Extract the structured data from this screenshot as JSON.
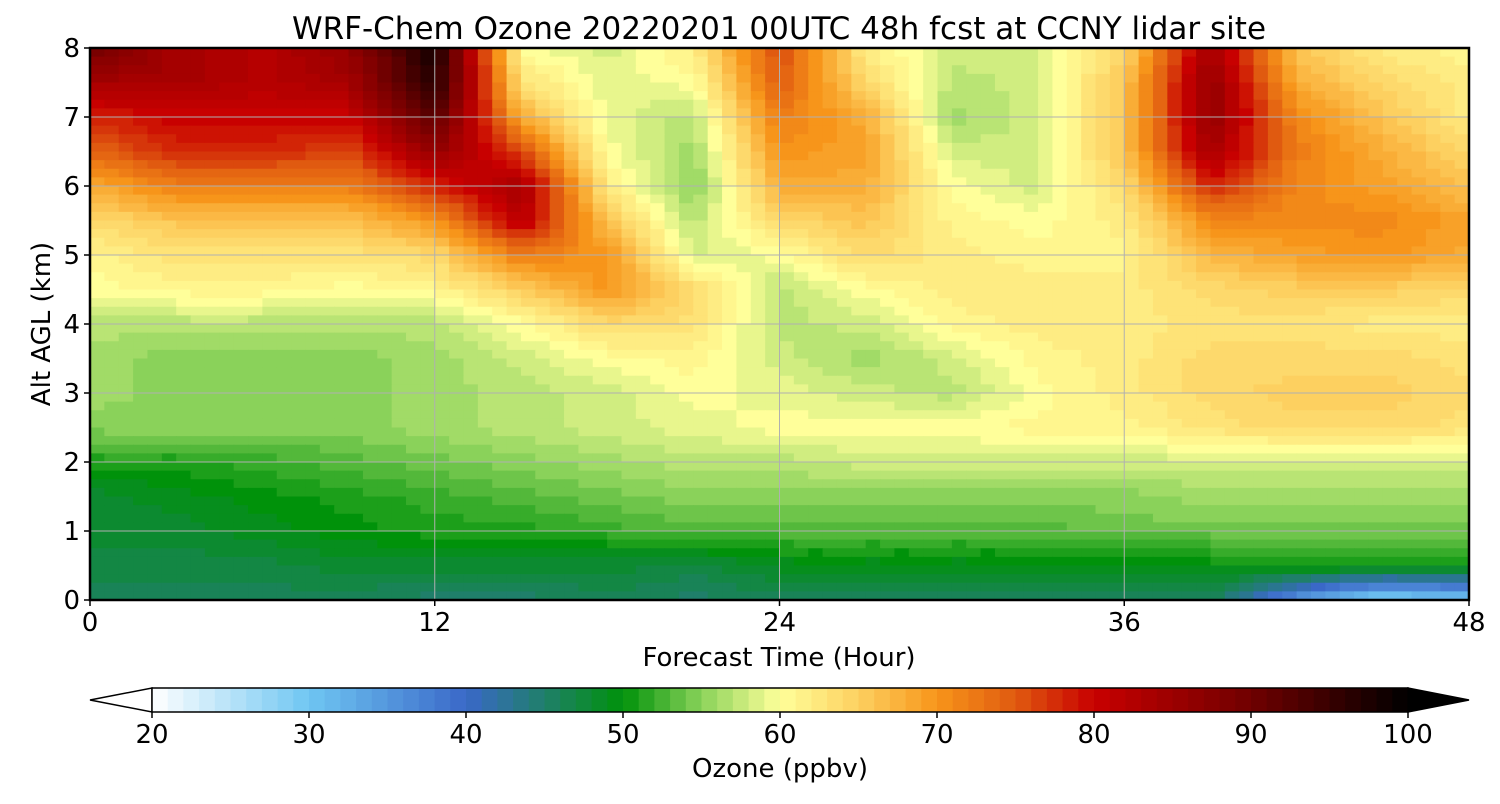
{
  "chart_data": {
    "type": "heatmap",
    "title": "WRF-Chem Ozone  20220201 00UTC 48h fcst at CCNY lidar site",
    "xlabel": "Forecast Time (Hour)",
    "ylabel": "Alt AGL (km)",
    "xlim": [
      0,
      48
    ],
    "ylim": [
      0,
      8
    ],
    "x_ticks": [
      0,
      12,
      24,
      36,
      48
    ],
    "y_ticks": [
      0,
      1,
      2,
      3,
      4,
      5,
      6,
      7,
      8
    ],
    "grid": true,
    "x": [
      0,
      3,
      6,
      9,
      12,
      15,
      18,
      21,
      24,
      27,
      30,
      33,
      36,
      39,
      42,
      45,
      48
    ],
    "y": [
      0,
      0.5,
      1,
      1.5,
      2,
      2.5,
      3,
      3.5,
      4,
      4.5,
      5,
      5.5,
      6,
      6.5,
      7,
      7.5,
      8
    ],
    "z": [
      [
        46,
        46,
        46,
        46,
        45,
        45,
        46,
        45,
        46,
        46,
        46,
        46,
        46,
        46,
        35,
        28,
        30
      ],
      [
        47,
        47,
        47,
        48,
        48,
        48,
        48,
        47,
        49,
        49,
        49,
        49,
        49,
        50,
        51,
        51,
        51
      ],
      [
        48,
        48,
        49,
        50,
        51,
        51,
        52,
        53,
        53,
        53,
        53,
        53,
        54,
        54,
        54,
        54,
        54
      ],
      [
        48,
        49,
        50,
        51,
        52,
        53,
        54,
        55,
        55,
        55,
        55,
        55,
        55,
        56,
        56,
        56,
        56
      ],
      [
        51,
        51,
        52,
        53,
        54,
        55,
        56,
        57,
        57,
        58,
        58,
        58,
        58,
        58,
        58,
        58,
        58
      ],
      [
        55,
        55,
        55,
        55,
        56,
        57,
        58,
        59,
        60,
        60,
        60,
        61,
        61,
        63,
        64,
        64,
        63
      ],
      [
        56,
        55,
        55,
        55,
        56,
        57,
        58,
        60,
        59,
        58,
        57,
        60,
        62,
        64,
        65,
        65,
        64
      ],
      [
        56,
        55,
        55,
        55,
        56,
        58,
        60,
        61,
        58,
        56,
        58,
        61,
        62,
        64,
        64,
        64,
        63
      ],
      [
        57,
        57,
        57,
        57,
        57,
        60,
        64,
        63,
        57,
        58,
        61,
        62,
        62,
        63,
        63,
        62,
        62
      ],
      [
        60,
        61,
        61,
        60,
        61,
        65,
        70,
        64,
        57,
        60,
        62,
        62,
        62,
        64,
        65,
        65,
        64
      ],
      [
        61,
        63,
        63,
        63,
        64,
        72,
        70,
        58,
        60,
        64,
        62,
        61,
        61,
        67,
        69,
        70,
        68
      ],
      [
        64,
        66,
        66,
        66,
        70,
        82,
        66,
        57,
        64,
        66,
        61,
        60,
        62,
        71,
        71,
        71,
        69
      ],
      [
        68,
        72,
        72,
        72,
        78,
        84,
        62,
        55,
        68,
        68,
        60,
        58,
        64,
        78,
        71,
        69,
        66
      ],
      [
        74,
        78,
        78,
        76,
        86,
        76,
        60,
        56,
        70,
        69,
        58,
        58,
        66,
        84,
        72,
        68,
        64
      ],
      [
        78,
        80,
        80,
        80,
        92,
        68,
        59,
        57,
        72,
        68,
        56,
        58,
        66,
        86,
        71,
        66,
        62
      ],
      [
        84,
        84,
        82,
        84,
        97,
        63,
        59,
        60,
        75,
        64,
        57,
        58,
        66,
        86,
        68,
        64,
        62
      ],
      [
        90,
        84,
        82,
        86,
        98,
        60,
        58,
        62,
        76,
        62,
        58,
        58,
        64,
        84,
        66,
        62,
        61
      ]
    ],
    "colorbar": {
      "label": "Ozone  (ppbv)",
      "min": 20,
      "max": 100,
      "ticks": [
        20,
        30,
        40,
        50,
        60,
        70,
        80,
        90,
        100
      ],
      "extend": "both",
      "orientation": "horizontal",
      "colors": [
        {
          "v": 20,
          "c": "#ffffff"
        },
        {
          "v": 30,
          "c": "#6fc6f2"
        },
        {
          "v": 40,
          "c": "#3a68c8"
        },
        {
          "v": 45,
          "c": "#1f7f6a"
        },
        {
          "v": 50,
          "c": "#00920a"
        },
        {
          "v": 55,
          "c": "#8ad25a"
        },
        {
          "v": 60,
          "c": "#ffff9a"
        },
        {
          "v": 65,
          "c": "#fdd060"
        },
        {
          "v": 70,
          "c": "#f7951a"
        },
        {
          "v": 75,
          "c": "#e05a10"
        },
        {
          "v": 80,
          "c": "#c80000"
        },
        {
          "v": 90,
          "c": "#700000"
        },
        {
          "v": 100,
          "c": "#000000"
        }
      ]
    }
  }
}
